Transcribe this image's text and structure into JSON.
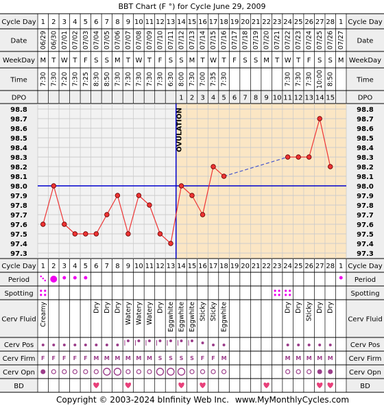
{
  "title": "BBT Chart (F °) for Cycle June 29, 2009",
  "footer": {
    "copyright": "Copyright © 2003-2024 bInfinity Web Inc.",
    "site": "www.MyMonthlyCycles.com"
  },
  "row_labels": {
    "cycle_day": "Cycle Day",
    "date": "Date",
    "weekday": "WeekDay",
    "time": "Time",
    "dpo": "DPO",
    "period": "Period",
    "spotting": "Spotting",
    "cerv_fluid": "Cerv Fluid",
    "cerv_pos": "Cerv Pos",
    "cerv_firm": "Cerv Firm",
    "cerv_opn": "Cerv Opn",
    "bd": "BD"
  },
  "ovulation_label": "OVULATION",
  "colors": {
    "follicular_bg": "#f2f2f2",
    "luteal_bg": "#fbe6c4",
    "grid_line": "#cccccc",
    "temp_line": "#ee3333",
    "point_fill": "#ee3333",
    "coverline": "#0000cc",
    "label_bg": "#eeeeee",
    "period": "#ee00ee",
    "heart": "#e8407a"
  },
  "chart_data": {
    "type": "line",
    "title": "BBT Chart (F °) for Cycle June 29, 2009",
    "x": [
      1,
      2,
      3,
      4,
      5,
      6,
      7,
      8,
      9,
      10,
      11,
      12,
      13,
      14,
      15,
      16,
      17,
      18,
      19,
      20,
      21,
      22,
      23,
      24,
      25,
      26,
      27,
      28,
      1
    ],
    "dates": [
      "06/29",
      "06/30",
      "07/01",
      "07/02",
      "07/03",
      "07/04",
      "07/05",
      "07/06",
      "07/07",
      "07/08",
      "07/09",
      "07/10",
      "07/11",
      "07/12",
      "07/13",
      "07/14",
      "07/15",
      "07/16",
      "07/17",
      "07/18",
      "07/19",
      "07/20",
      "07/21",
      "07/22",
      "07/23",
      "07/24",
      "07/25",
      "07/26",
      "07/27"
    ],
    "weekdays": [
      "M",
      "T",
      "W",
      "T",
      "F",
      "S",
      "S",
      "M",
      "T",
      "W",
      "T",
      "F",
      "S",
      "S",
      "M",
      "T",
      "W",
      "T",
      "F",
      "S",
      "S",
      "M",
      "T",
      "W",
      "T",
      "F",
      "S",
      "S",
      "M"
    ],
    "times": [
      "7:30",
      "7:30",
      "7:20",
      "7:30",
      "7:25",
      "8:30",
      "8:50",
      "7:30",
      "7:30",
      "7:30",
      "7:30",
      "7:30",
      "6:30",
      "8:00",
      "7:30",
      "7:00",
      "7:35",
      "7:30",
      "",
      "",
      "",
      "",
      "",
      "7:30",
      "7:30",
      "7:30",
      "10:00",
      "8:50",
      ""
    ],
    "dpo": [
      "",
      "",
      "",
      "",
      "",
      "",
      "",
      "",
      "",
      "",
      "",
      "",
      "",
      "1",
      "2",
      "3",
      "4",
      "5",
      "6",
      "7",
      "8",
      "9",
      "10",
      "11",
      "12",
      "13",
      "14",
      "15",
      ""
    ],
    "series": [
      {
        "values": [
          97.6,
          98.0,
          97.6,
          97.5,
          97.5,
          97.5,
          97.7,
          97.9,
          97.5,
          97.9,
          97.8,
          97.5,
          97.4,
          98.0,
          97.9,
          97.7,
          98.2,
          98.1,
          null,
          null,
          null,
          null,
          null,
          98.3,
          98.3,
          98.3,
          98.7,
          98.2,
          null
        ]
      }
    ],
    "ylim": [
      97.3,
      98.8
    ],
    "y_ticks": [
      "98.8",
      "98.7",
      "98.6",
      "98.5",
      "98.4",
      "98.3",
      "98.2",
      "98.1",
      "98.0",
      "97.9",
      "97.8",
      "97.7",
      "97.6",
      "97.5",
      "97.4",
      "97.3"
    ],
    "coverline": 98.0,
    "ovulation_day": 13,
    "period": [
      "small",
      "big",
      "medium",
      "medium",
      "medium",
      "",
      "",
      "",
      "",
      "",
      "",
      "",
      "",
      "",
      "",
      "",
      "",
      "",
      "",
      "",
      "",
      "",
      "",
      "",
      "",
      "",
      "",
      "",
      "medium"
    ],
    "spotting": [
      true,
      false,
      false,
      false,
      false,
      false,
      false,
      false,
      false,
      false,
      false,
      false,
      false,
      false,
      false,
      false,
      false,
      false,
      false,
      false,
      false,
      false,
      true,
      true,
      false,
      false,
      false,
      false,
      false
    ],
    "cerv_fluid": [
      "Creamy",
      "",
      "",
      "",
      "",
      "Dry",
      "Dry",
      "Dry",
      "Watery",
      "Watery",
      "Watery",
      "Dry",
      "Eggwhite",
      "Eggwhite",
      "Eggwhite",
      "Sticky",
      "Sticky",
      "Eggwhite",
      "",
      "",
      "",
      "",
      "",
      "Dry",
      "Dry",
      "Sticky",
      "Dry",
      "Dry",
      ""
    ],
    "cerv_pos": [
      "low",
      "low",
      "low",
      "low",
      "low",
      "low",
      "low",
      "low",
      "high",
      "high",
      "high",
      "high",
      "high",
      "high",
      "high",
      "med",
      "low",
      "low",
      "",
      "",
      "",
      "",
      "",
      "low",
      "low",
      "low",
      "low",
      "low",
      ""
    ],
    "cerv_firm": [
      "F",
      "F",
      "F",
      "F",
      "F",
      "M",
      "M",
      "M",
      "M",
      "M",
      "M",
      "S",
      "S",
      "S",
      "S",
      "F",
      "F",
      "M",
      "",
      "",
      "",
      "",
      "",
      "M",
      "M",
      "M",
      "M",
      "M",
      ""
    ],
    "cerv_opn": [
      "filled",
      "o",
      "o",
      "o",
      "o",
      "o",
      "O",
      "O",
      "o",
      "o",
      "o",
      "O",
      "O",
      "O",
      "o",
      "o",
      "o",
      "o",
      "",
      "",
      "",
      "",
      "",
      "o",
      "o",
      "o",
      "filled",
      "filled",
      ""
    ],
    "bd": [
      false,
      false,
      false,
      false,
      false,
      true,
      false,
      false,
      true,
      false,
      false,
      false,
      false,
      true,
      false,
      true,
      false,
      false,
      false,
      false,
      false,
      true,
      false,
      false,
      false,
      false,
      true,
      true,
      false
    ]
  }
}
